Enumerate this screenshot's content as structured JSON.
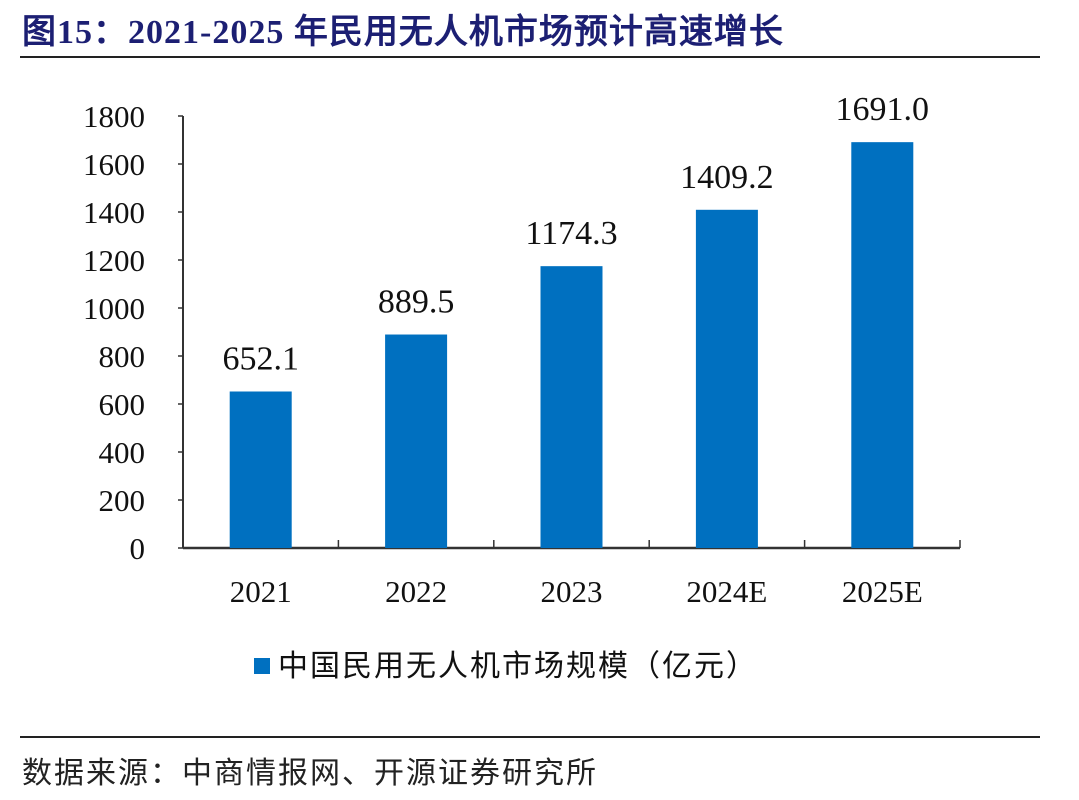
{
  "title": "图15：2021-2025 年民用无人机市场预计高速增长",
  "source": "数据来源：中商情报网、开源证券研究所",
  "chart_data": {
    "type": "bar",
    "categories": [
      "2021",
      "2022",
      "2023",
      "2024E",
      "2025E"
    ],
    "series": [
      {
        "name": "中国民用无人机市场规模（亿元）",
        "values": [
          652.1,
          889.5,
          1174.3,
          1409.2,
          1691.0
        ],
        "color": "#0070c0"
      }
    ],
    "data_labels": [
      "652.1",
      "889.5",
      "1174.3",
      "1409.2",
      "1691.0"
    ],
    "ylim": [
      0,
      1800
    ],
    "yticks": [
      0,
      200,
      400,
      600,
      800,
      1000,
      1200,
      1400,
      1600,
      1800
    ],
    "grid": false,
    "legend": "bottom"
  }
}
